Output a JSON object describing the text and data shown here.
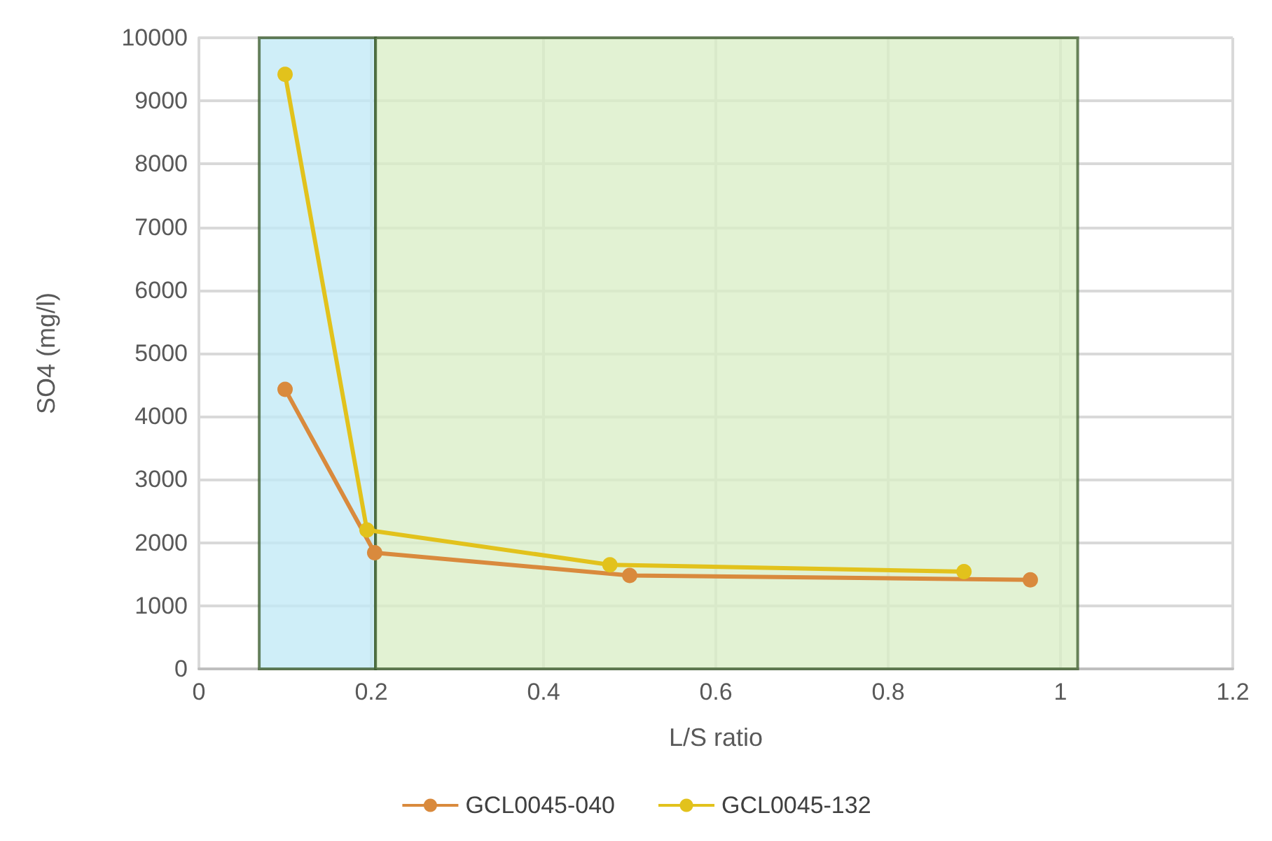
{
  "chart_data": {
    "type": "line",
    "xlabel": "L/S ratio",
    "ylabel": "SO4 (mg/l)",
    "xlim": [
      0,
      1.2
    ],
    "xticks": [
      0,
      0.2,
      0.4,
      0.6,
      0.8,
      1,
      1.2
    ],
    "ylim": [
      0,
      10000
    ],
    "yticks": [
      0,
      1000,
      2000,
      3000,
      4000,
      5000,
      6000,
      7000,
      8000,
      9000,
      10000
    ],
    "grid": true,
    "legend": "bottom",
    "marker": "circle",
    "line_style": "solid",
    "series": [
      {
        "name": "GCL0045-040",
        "color": "#d98a3d",
        "x": [
          0.1,
          0.204,
          0.5,
          0.965
        ],
        "values": [
          4430,
          1840,
          1480,
          1410
        ]
      },
      {
        "name": "GCL0045-132",
        "color": "#e2c21c",
        "x": [
          0.1,
          0.195,
          0.477,
          0.888
        ],
        "values": [
          9420,
          2200,
          1650,
          1540
        ]
      }
    ],
    "bands": [
      {
        "axis": "x",
        "from": 0.07,
        "to": 0.205,
        "color": "#bfe8f5"
      },
      {
        "axis": "x",
        "from": 0.205,
        "to": 1.02,
        "color": "#d8edc4"
      }
    ]
  }
}
